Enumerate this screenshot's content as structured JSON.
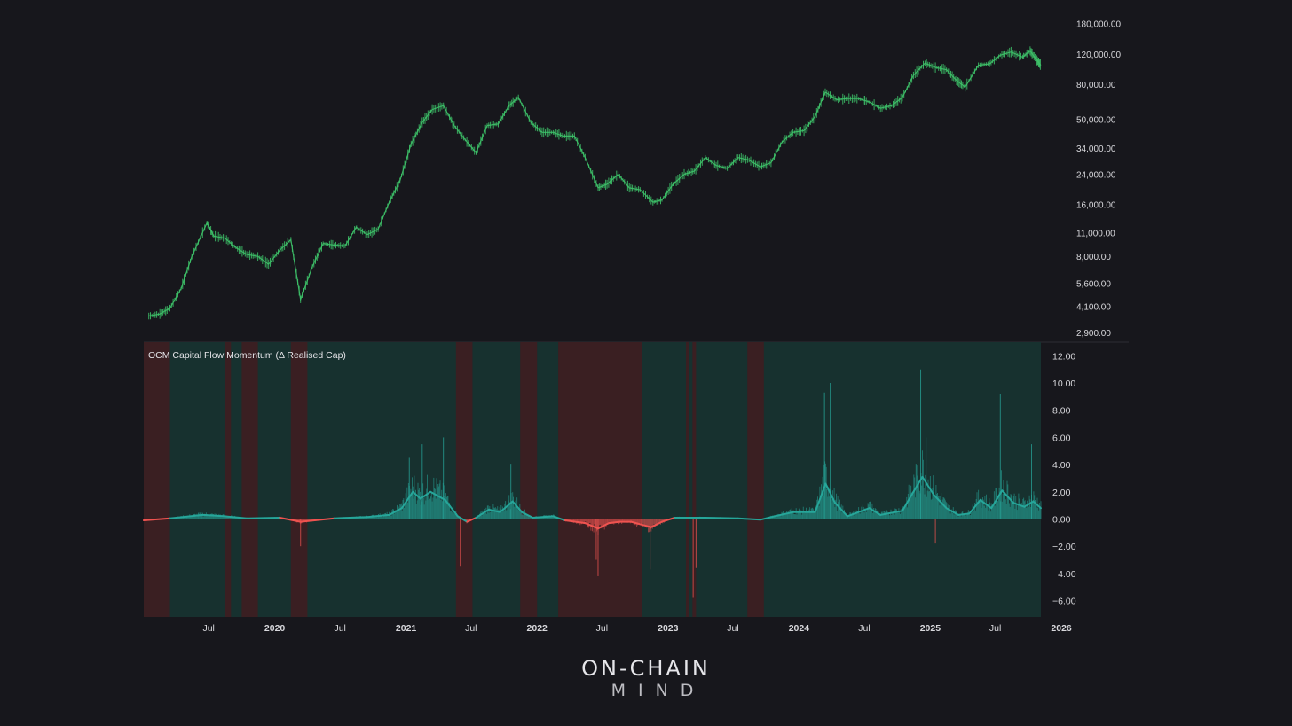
{
  "colors": {
    "background": "#17171c",
    "price_candle": "#3ec46a",
    "inflow_regime": "#17312f",
    "outflow_regime": "#3a1f22",
    "positive_flow": "#26a69a",
    "negative_flow": "#ef5350",
    "axis_text": "#d8d8dc"
  },
  "brand": {
    "line1": "ON-CHAIN",
    "line2": "MIND"
  },
  "chart_data": [
    {
      "type": "line",
      "series": [
        {
          "values": [
            [
              "2019-01-15",
              3600
            ],
            [
              "2019-02-15",
              3700
            ],
            [
              "2019-03-15",
              4000
            ],
            [
              "2019-04-15",
              5200
            ],
            [
              "2019-05-15",
              8000
            ],
            [
              "2019-06-26",
              12500
            ],
            [
              "2019-07-15",
              10500
            ],
            [
              "2019-08-15",
              10200
            ],
            [
              "2019-09-15",
              9000
            ],
            [
              "2019-10-15",
              8200
            ],
            [
              "2019-11-15",
              8000
            ],
            [
              "2019-12-15",
              7200
            ],
            [
              "2020-01-15",
              8700
            ],
            [
              "2020-02-15",
              10000
            ],
            [
              "2020-03-13",
              4500
            ],
            [
              "2020-04-15",
              7000
            ],
            [
              "2020-05-15",
              9500
            ],
            [
              "2020-06-15",
              9300
            ],
            [
              "2020-07-15",
              9200
            ],
            [
              "2020-08-15",
              11800
            ],
            [
              "2020-09-15",
              10700
            ],
            [
              "2020-10-15",
              11500
            ],
            [
              "2020-11-15",
              16500
            ],
            [
              "2020-12-15",
              22000
            ],
            [
              "2021-01-15",
              36000
            ],
            [
              "2021-02-15",
              48000
            ],
            [
              "2021-03-15",
              57000
            ],
            [
              "2021-04-15",
              60000
            ],
            [
              "2021-05-15",
              46000
            ],
            [
              "2021-06-15",
              38000
            ],
            [
              "2021-07-15",
              32000
            ],
            [
              "2021-08-15",
              46000
            ],
            [
              "2021-09-15",
              47000
            ],
            [
              "2021-10-15",
              60000
            ],
            [
              "2021-11-10",
              67000
            ],
            [
              "2021-12-15",
              48000
            ],
            [
              "2022-01-15",
              42000
            ],
            [
              "2022-02-15",
              42000
            ],
            [
              "2022-03-15",
              40000
            ],
            [
              "2022-04-15",
              40000
            ],
            [
              "2022-05-15",
              30000
            ],
            [
              "2022-06-20",
              20000
            ],
            [
              "2022-07-15",
              21000
            ],
            [
              "2022-08-15",
              24000
            ],
            [
              "2022-09-15",
              20000
            ],
            [
              "2022-10-15",
              19500
            ],
            [
              "2022-11-20",
              16500
            ],
            [
              "2022-12-15",
              17000
            ],
            [
              "2023-01-15",
              21000
            ],
            [
              "2023-02-15",
              24000
            ],
            [
              "2023-03-15",
              25000
            ],
            [
              "2023-04-15",
              30000
            ],
            [
              "2023-05-15",
              27000
            ],
            [
              "2023-06-15",
              26000
            ],
            [
              "2023-07-15",
              30000
            ],
            [
              "2023-08-15",
              29000
            ],
            [
              "2023-09-15",
              26500
            ],
            [
              "2023-10-15",
              28000
            ],
            [
              "2023-11-15",
              37000
            ],
            [
              "2023-12-15",
              42000
            ],
            [
              "2024-01-15",
              43000
            ],
            [
              "2024-02-15",
              52000
            ],
            [
              "2024-03-14",
              72000
            ],
            [
              "2024-04-15",
              65000
            ],
            [
              "2024-05-15",
              66000
            ],
            [
              "2024-06-15",
              66000
            ],
            [
              "2024-07-15",
              63000
            ],
            [
              "2024-08-15",
              58000
            ],
            [
              "2024-09-15",
              60000
            ],
            [
              "2024-10-15",
              67000
            ],
            [
              "2024-11-15",
              90000
            ],
            [
              "2024-12-17",
              106000
            ],
            [
              "2025-01-15",
              100000
            ],
            [
              "2025-02-15",
              97000
            ],
            [
              "2025-03-15",
              84000
            ],
            [
              "2025-04-08",
              77000
            ],
            [
              "2025-05-15",
              103000
            ],
            [
              "2025-06-15",
              105000
            ],
            [
              "2025-07-15",
              118000
            ],
            [
              "2025-08-14",
              123000
            ],
            [
              "2025-09-15",
              115000
            ],
            [
              "2025-10-06",
              125000
            ],
            [
              "2025-10-25",
              110000
            ],
            [
              "2025-11-05",
              103000
            ]
          ]
        }
      ],
      "y_scale": "log",
      "yticks": [
        "180,000.00",
        "120,000.00",
        "80,000.00",
        "50,000.00",
        "34,000.00",
        "24,000.00",
        "16,000.00",
        "11,000.00",
        "8,000.00",
        "5,600.00",
        "4,100.00",
        "2,900.00"
      ],
      "ylim": [
        2600,
        190000
      ]
    },
    {
      "type": "bar",
      "title": "OCM Capital Flow Momentum (Δ Realised Cap)",
      "xticks": [
        "Jul",
        "2020",
        "Jul",
        "2021",
        "Jul",
        "2022",
        "Jul",
        "2023",
        "Jul",
        "2024",
        "Jul",
        "2025",
        "Jul",
        "2026"
      ],
      "yticks": [
        "12.00",
        "10.00",
        "8.00",
        "6.00",
        "4.00",
        "2.00",
        "0.00",
        "−2.00",
        "−4.00",
        "−6.00"
      ],
      "ylim": [
        -7.2,
        13
      ],
      "xlim": [
        "2019-01-01",
        "2025-11-05"
      ],
      "outflow_regimes": [
        [
          "2019-01-01",
          "2019-03-15"
        ],
        [
          "2019-08-15",
          "2019-09-01"
        ],
        [
          "2019-10-01",
          "2019-11-15"
        ],
        [
          "2020-02-15",
          "2020-04-01"
        ],
        [
          "2021-05-20",
          "2021-07-05"
        ],
        [
          "2021-11-15",
          "2022-01-01"
        ],
        [
          "2022-03-01",
          "2022-10-20"
        ],
        [
          "2023-02-20",
          "2023-03-01"
        ],
        [
          "2023-03-10",
          "2023-03-20"
        ],
        [
          "2023-08-10",
          "2023-09-25"
        ]
      ],
      "momentum_line": [
        [
          "2019-01-01",
          -0.1
        ],
        [
          "2019-03-15",
          0.05
        ],
        [
          "2019-06-15",
          0.3
        ],
        [
          "2019-08-15",
          0.2
        ],
        [
          "2019-10-15",
          0.05
        ],
        [
          "2020-01-15",
          0.1
        ],
        [
          "2020-03-13",
          -0.2
        ],
        [
          "2020-06-15",
          0.05
        ],
        [
          "2020-09-15",
          0.15
        ],
        [
          "2020-11-15",
          0.3
        ],
        [
          "2020-12-20",
          0.8
        ],
        [
          "2021-01-20",
          2.0
        ],
        [
          "2021-02-10",
          1.5
        ],
        [
          "2021-03-10",
          2.0
        ],
        [
          "2021-04-20",
          1.4
        ],
        [
          "2021-05-25",
          0.2
        ],
        [
          "2021-06-20",
          -0.2
        ],
        [
          "2021-07-15",
          0.1
        ],
        [
          "2021-08-20",
          0.7
        ],
        [
          "2021-09-20",
          0.5
        ],
        [
          "2021-10-25",
          1.3
        ],
        [
          "2021-11-20",
          0.5
        ],
        [
          "2021-12-20",
          0.1
        ],
        [
          "2022-02-15",
          0.2
        ],
        [
          "2022-03-20",
          -0.1
        ],
        [
          "2022-05-15",
          -0.3
        ],
        [
          "2022-06-20",
          -0.7
        ],
        [
          "2022-07-20",
          -0.3
        ],
        [
          "2022-08-20",
          -0.2
        ],
        [
          "2022-09-20",
          -0.2
        ],
        [
          "2022-11-15",
          -0.6
        ],
        [
          "2022-12-15",
          -0.2
        ],
        [
          "2023-01-20",
          0.1
        ],
        [
          "2023-04-15",
          0.1
        ],
        [
          "2023-07-15",
          0.05
        ],
        [
          "2023-09-15",
          -0.05
        ],
        [
          "2023-10-25",
          0.2
        ],
        [
          "2023-12-15",
          0.5
        ],
        [
          "2024-02-15",
          0.5
        ],
        [
          "2024-03-15",
          2.6
        ],
        [
          "2024-04-10",
          1.2
        ],
        [
          "2024-05-15",
          0.2
        ],
        [
          "2024-07-15",
          0.8
        ],
        [
          "2024-08-15",
          0.3
        ],
        [
          "2024-10-15",
          0.6
        ],
        [
          "2024-11-15",
          2.0
        ],
        [
          "2024-12-10",
          3.1
        ],
        [
          "2025-01-10",
          1.8
        ],
        [
          "2025-02-15",
          0.8
        ],
        [
          "2025-03-20",
          0.3
        ],
        [
          "2025-04-20",
          0.4
        ],
        [
          "2025-05-20",
          1.4
        ],
        [
          "2025-06-20",
          0.8
        ],
        [
          "2025-07-20",
          2.1
        ],
        [
          "2025-08-20",
          1.2
        ],
        [
          "2025-09-20",
          0.9
        ],
        [
          "2025-10-15",
          1.3
        ],
        [
          "2025-11-05",
          0.8
        ]
      ],
      "daily_spikes": [
        [
          "2020-03-13",
          -2.0
        ],
        [
          "2021-01-10",
          4.5
        ],
        [
          "2021-02-15",
          5.5
        ],
        [
          "2021-04-15",
          6.0
        ],
        [
          "2021-06-01",
          -3.5
        ],
        [
          "2021-10-20",
          4.0
        ],
        [
          "2022-06-15",
          -3.0
        ],
        [
          "2022-06-20",
          -4.2
        ],
        [
          "2022-11-12",
          -3.7
        ],
        [
          "2023-03-12",
          -5.8
        ],
        [
          "2023-03-20",
          -3.6
        ],
        [
          "2024-03-12",
          9.3
        ],
        [
          "2024-03-28",
          10.0
        ],
        [
          "2024-12-05",
          11.0
        ],
        [
          "2024-12-20",
          6.0
        ],
        [
          "2025-01-15",
          -1.8
        ],
        [
          "2025-07-15",
          9.2
        ],
        [
          "2025-10-10",
          5.5
        ]
      ]
    }
  ]
}
